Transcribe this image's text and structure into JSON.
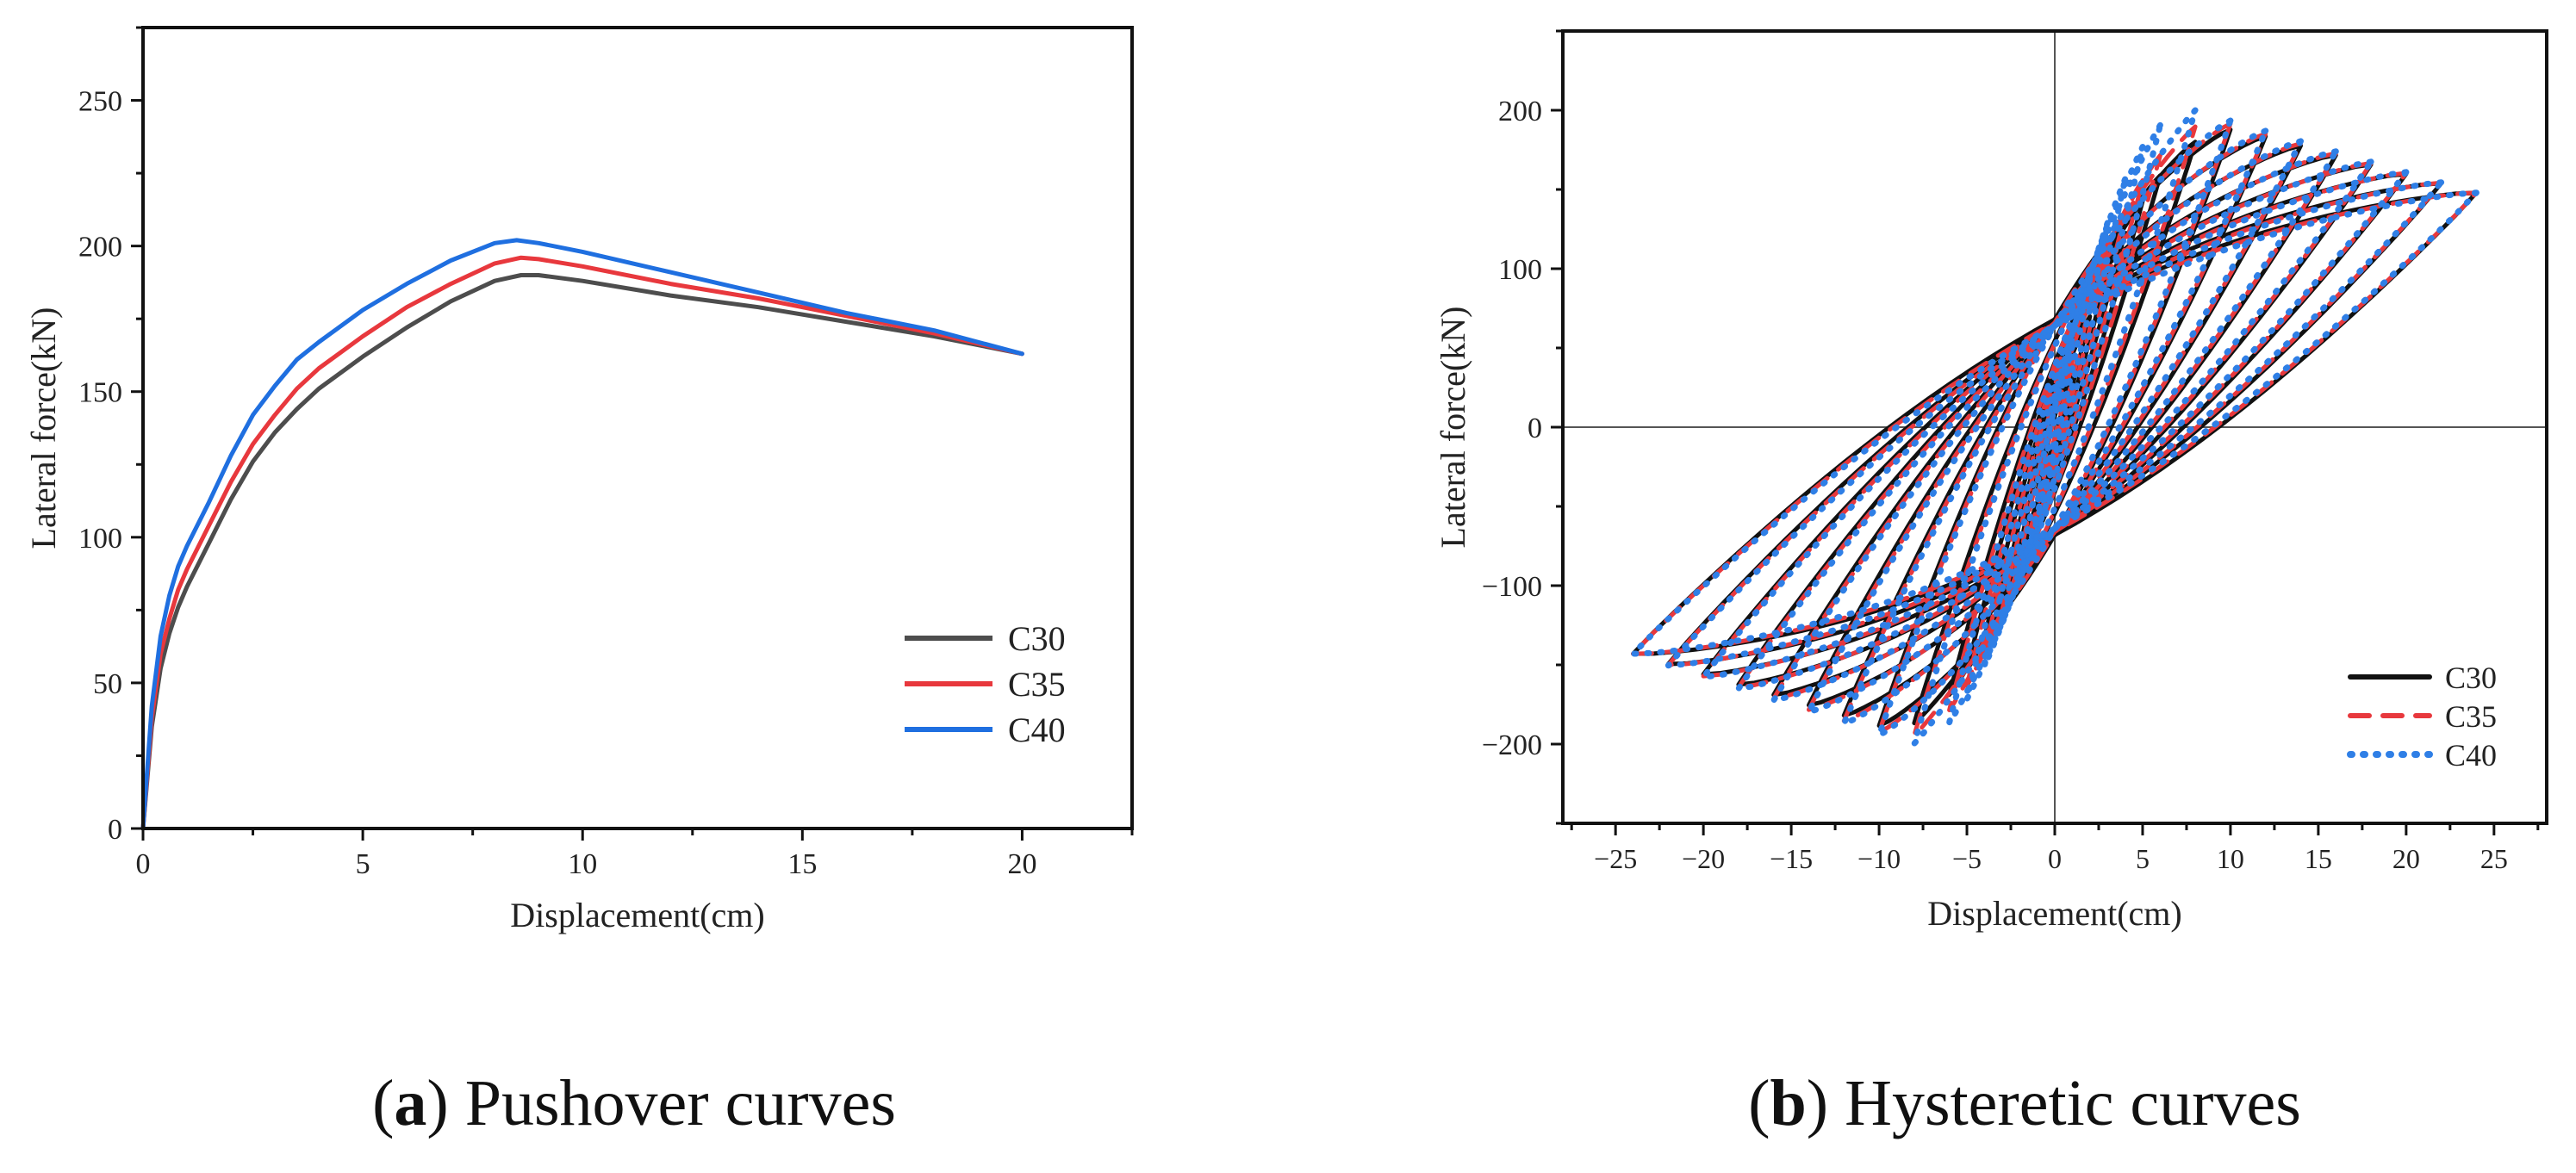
{
  "chart_data": [
    {
      "type": "line",
      "panel_letter": "a",
      "caption": "Pushover curves",
      "xlabel": "Displacement(cm)",
      "ylabel": "Lateral force(kN)",
      "xlim": [
        0,
        22.5
      ],
      "ylim": [
        0,
        275
      ],
      "xticks": [
        0,
        5,
        10,
        15,
        20
      ],
      "yticks": [
        0,
        50,
        100,
        150,
        200,
        250
      ],
      "grid": false,
      "legend_position": "bottom-right",
      "series": [
        {
          "name": "C30",
          "color": "#4d4d4d",
          "x": [
            0,
            0.2,
            0.4,
            0.6,
            0.8,
            1.0,
            1.5,
            2.0,
            2.5,
            3.0,
            3.5,
            4.0,
            5.0,
            6.0,
            7.0,
            8.0,
            8.6,
            9.0,
            10,
            12,
            14,
            16,
            18,
            20
          ],
          "y": [
            0,
            35,
            55,
            67,
            76,
            83,
            98,
            113,
            126,
            136,
            144,
            151,
            162,
            172,
            181,
            188,
            190,
            190,
            188,
            183,
            179,
            174,
            169,
            163
          ]
        },
        {
          "name": "C35",
          "color": "#e8383d",
          "x": [
            0,
            0.2,
            0.4,
            0.6,
            0.8,
            1.0,
            1.5,
            2.0,
            2.5,
            3.0,
            3.5,
            4.0,
            5.0,
            6.0,
            7.0,
            8.0,
            8.6,
            9.0,
            10,
            12,
            14,
            16,
            18,
            20
          ],
          "y": [
            0,
            38,
            60,
            72,
            82,
            89,
            104,
            119,
            132,
            142,
            151,
            158,
            169,
            179,
            187,
            194,
            196,
            195.5,
            193,
            187,
            182,
            176,
            170,
            163
          ]
        },
        {
          "name": "C40",
          "color": "#1f6fe0",
          "x": [
            0,
            0.2,
            0.4,
            0.6,
            0.8,
            1.0,
            1.5,
            2.0,
            2.5,
            3.0,
            3.5,
            4.0,
            5.0,
            6.0,
            7.0,
            8.0,
            8.5,
            9.0,
            10,
            12,
            14,
            16,
            18,
            20
          ],
          "y": [
            0,
            42,
            66,
            80,
            90,
            97,
            112,
            128,
            142,
            152,
            161,
            167,
            178,
            187,
            195,
            201,
            202,
            201,
            198,
            191,
            184,
            177,
            171,
            163
          ]
        }
      ]
    },
    {
      "type": "line",
      "panel_letter": "b",
      "caption": "Hysteretic curves",
      "xlabel": "Displacement(cm)",
      "ylabel": "Lateral force(kN)",
      "xlim": [
        -28,
        28
      ],
      "ylim": [
        -250,
        250
      ],
      "xticks": [
        -25,
        -20,
        -15,
        -10,
        -5,
        0,
        5,
        10,
        15,
        20,
        25
      ],
      "yticks": [
        -200,
        -100,
        0,
        100,
        200
      ],
      "grid": false,
      "legend_position": "bottom-right",
      "loop_amplitudes": [
        1,
        2,
        3,
        4,
        5,
        6,
        8,
        10,
        12,
        14,
        16,
        18,
        20,
        22,
        24
      ],
      "series": [
        {
          "name": "C30",
          "color": "#111111",
          "style": "solid",
          "peak_positive": 188,
          "peak_positive_disp": 10.5,
          "force_at_max_disp": 148,
          "peak_negative": -190,
          "peak_negative_disp": -9.5,
          "force_at_min_disp": -143,
          "intercept_force": 68
        },
        {
          "name": "C35",
          "color": "#e8383d",
          "style": "dashed",
          "peak_positive": 193,
          "peak_positive_disp": 9.5,
          "force_at_max_disp": 148,
          "peak_negative": -196,
          "peak_negative_disp": -9.0,
          "force_at_min_disp": -143,
          "intercept_force": 66
        },
        {
          "name": "C40",
          "color": "#2f7fe6",
          "style": "dotted",
          "peak_positive": 200,
          "peak_positive_disp": 8.0,
          "force_at_max_disp": 148,
          "peak_negative": -200,
          "peak_negative_disp": -8.5,
          "force_at_min_disp": -143,
          "intercept_force": 64
        }
      ]
    }
  ]
}
